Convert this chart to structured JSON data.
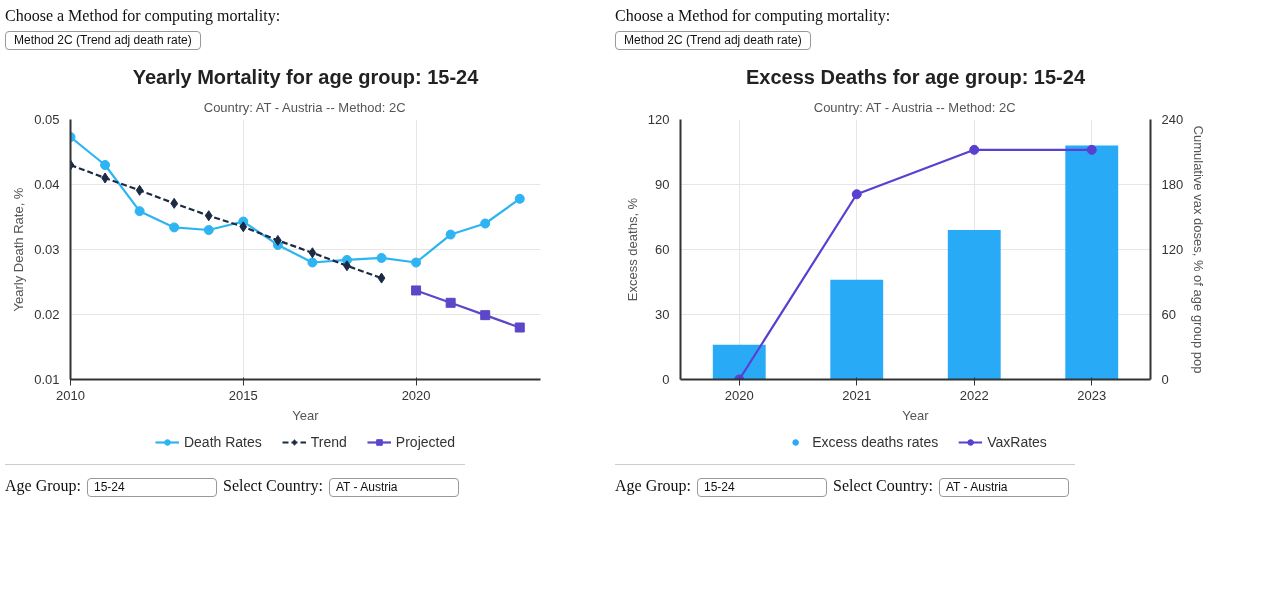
{
  "chart_data": [
    {
      "type": "line",
      "title": "Yearly Mortality for age group: 15-24",
      "subtitle": "Country: AT - Austria -- Method: 2C",
      "xlabel": "Year",
      "ylabel": "Yearly Death Rate, %",
      "x": [
        2010,
        2011,
        2012,
        2013,
        2014,
        2015,
        2016,
        2017,
        2018,
        2019,
        2020,
        2021,
        2022,
        2023
      ],
      "series": [
        {
          "name": "Death Rates",
          "color": "#2eb4f2",
          "marker": "circle",
          "line_style": "solid",
          "values": [
            0.0473,
            0.043,
            0.0359,
            0.0334,
            0.033,
            0.0343,
            0.0307,
            0.028,
            0.0284,
            0.0287,
            0.028,
            0.0323,
            0.034,
            0.0378
          ]
        },
        {
          "name": "Trend",
          "color": "#1c2b45",
          "marker": "diamond",
          "line_style": "dashed",
          "x": [
            2010,
            2011,
            2012,
            2013,
            2014,
            2015,
            2016,
            2017,
            2018,
            2019
          ],
          "values": [
            0.043,
            0.041,
            0.0391,
            0.0371,
            0.0352,
            0.0335,
            0.0314,
            0.0295,
            0.0275,
            0.0256
          ]
        },
        {
          "name": "Projected",
          "color": "#5b47c8",
          "marker": "square",
          "line_style": "solid",
          "x": [
            2020,
            2021,
            2022,
            2023
          ],
          "values": [
            0.0237,
            0.0218,
            0.0199,
            0.018
          ]
        }
      ],
      "xlim": [
        2010,
        2023.6
      ],
      "xticks": [
        2010,
        2015,
        2020
      ],
      "ylim": [
        0.01,
        0.05
      ],
      "yticks": [
        0.01,
        0.02,
        0.03,
        0.04,
        0.05
      ],
      "grid": true,
      "legend": "bottom",
      "annotations": [
        "Choose a Method for computing mortality:",
        "Method 2C (Trend adj death rate)",
        "Age Group:",
        "15-24",
        "Select Country:",
        "AT - Austria"
      ]
    },
    {
      "type": "bar",
      "title": "Excess Deaths for age group: 15-24",
      "subtitle": "Country: AT - Austria -- Method: 2C",
      "xlabel": "Year",
      "ylabel": "Excess deaths, %",
      "y2label": "Cumulative vax doses, % of age group pop",
      "categories": [
        "2020",
        "2021",
        "2022",
        "2023"
      ],
      "series": [
        {
          "name": "Excess deaths rates",
          "color": "#29aaf7",
          "values": [
            16,
            46,
            69,
            108
          ]
        },
        {
          "name": "VaxRates",
          "type": "line",
          "axis": "y2",
          "color": "#5a3fd0",
          "marker": "circle",
          "line_style": "solid",
          "values": [
            0,
            171,
            212,
            212
          ]
        }
      ],
      "ylim": [
        0,
        120
      ],
      "yticks": [
        0,
        30,
        60,
        90,
        120
      ],
      "y2lim": [
        0,
        240
      ],
      "y2ticks": [
        0,
        60,
        120,
        180,
        240
      ],
      "grid": true,
      "legend": "bottom",
      "annotations": [
        "Choose a Method for computing mortality:",
        "Method 2C (Trend adj death rate)",
        "Age Group:",
        "15-24",
        "Select Country:",
        "AT - Austria"
      ]
    }
  ]
}
